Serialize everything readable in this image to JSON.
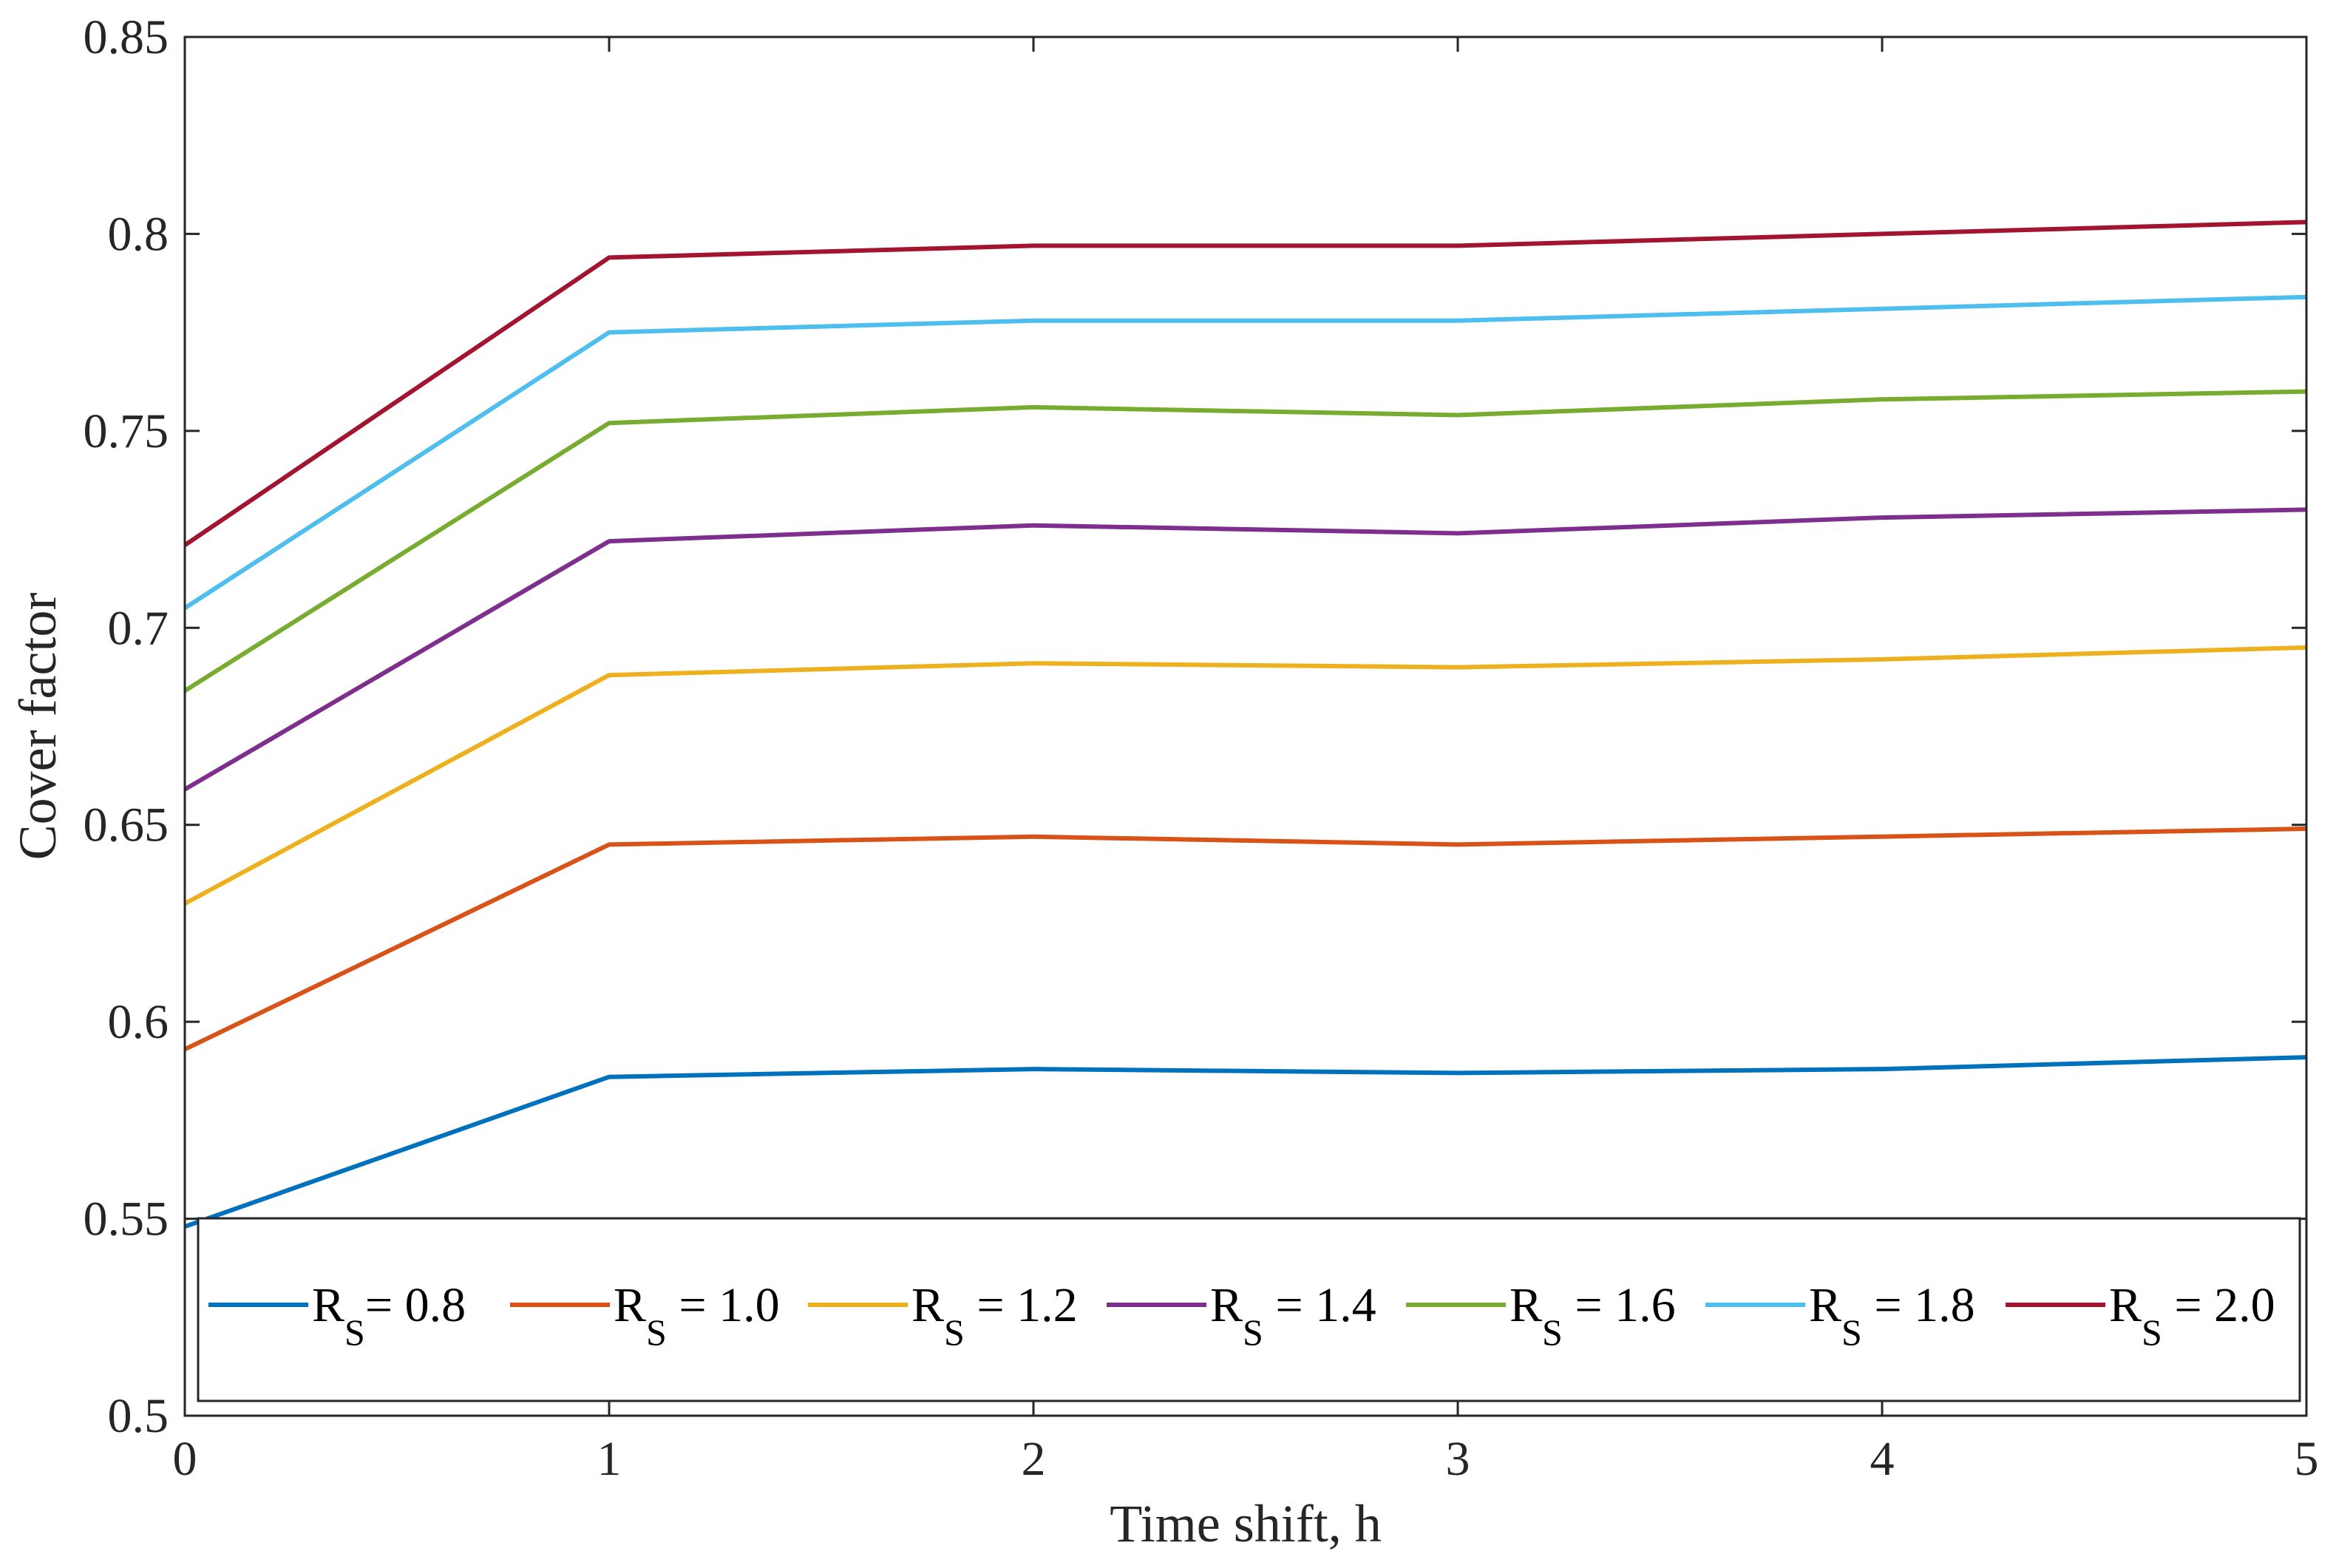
{
  "chart_data": {
    "type": "line",
    "title": "",
    "xlabel": "Time shift, h",
    "ylabel": "Cover factor",
    "xlim": [
      0,
      5
    ],
    "ylim": [
      0.5,
      0.85
    ],
    "xticks": [
      0,
      1,
      2,
      3,
      4,
      5
    ],
    "xtick_labels": [
      "0",
      "1",
      "2",
      "3",
      "4",
      "5"
    ],
    "yticks": [
      0.5,
      0.55,
      0.6,
      0.65,
      0.7,
      0.75,
      0.8,
      0.85
    ],
    "ytick_labels": [
      "0.5",
      "0.55",
      "0.6",
      "0.65",
      "0.7",
      "0.75",
      "0.8",
      "0.85"
    ],
    "grid": false,
    "legend_position": "bottom-inside",
    "x": [
      0,
      1,
      2,
      3,
      4,
      5
    ],
    "series": [
      {
        "name": "RS= 0.8",
        "label_main": "R",
        "label_sub": "S",
        "label_rest": "= 0.8",
        "color": "#0072BD",
        "values": [
          0.548,
          0.586,
          0.588,
          0.587,
          0.588,
          0.591
        ]
      },
      {
        "name": "RS = 1.0",
        "label_main": "R",
        "label_sub": "S",
        "label_rest": " = 1.0",
        "color": "#D95319",
        "values": [
          0.593,
          0.645,
          0.647,
          0.645,
          0.647,
          0.649
        ]
      },
      {
        "name": "RS = 1.2",
        "label_main": "R",
        "label_sub": "S",
        "label_rest": " = 1.2",
        "color": "#EDB120",
        "values": [
          0.63,
          0.688,
          0.691,
          0.69,
          0.692,
          0.695
        ]
      },
      {
        "name": "RS = 1.4",
        "label_main": "R",
        "label_sub": "S",
        "label_rest": " = 1.4",
        "color": "#7E2F8E",
        "values": [
          0.659,
          0.722,
          0.726,
          0.724,
          0.728,
          0.73
        ]
      },
      {
        "name": "RS = 1.6",
        "label_main": "R",
        "label_sub": "S",
        "label_rest": " = 1.6",
        "color": "#77AC30",
        "values": [
          0.684,
          0.752,
          0.756,
          0.754,
          0.758,
          0.76
        ]
      },
      {
        "name": "RS = 1.8",
        "label_main": "R",
        "label_sub": "S",
        "label_rest": " = 1.8",
        "color": "#4DBEEE",
        "values": [
          0.705,
          0.775,
          0.778,
          0.778,
          0.781,
          0.784
        ]
      },
      {
        "name": "RS = 2.0",
        "label_main": "R",
        "label_sub": "S",
        "label_rest": " = 2.0",
        "color": "#A2142F",
        "values": [
          0.721,
          0.794,
          0.797,
          0.797,
          0.8,
          0.803
        ]
      }
    ]
  }
}
